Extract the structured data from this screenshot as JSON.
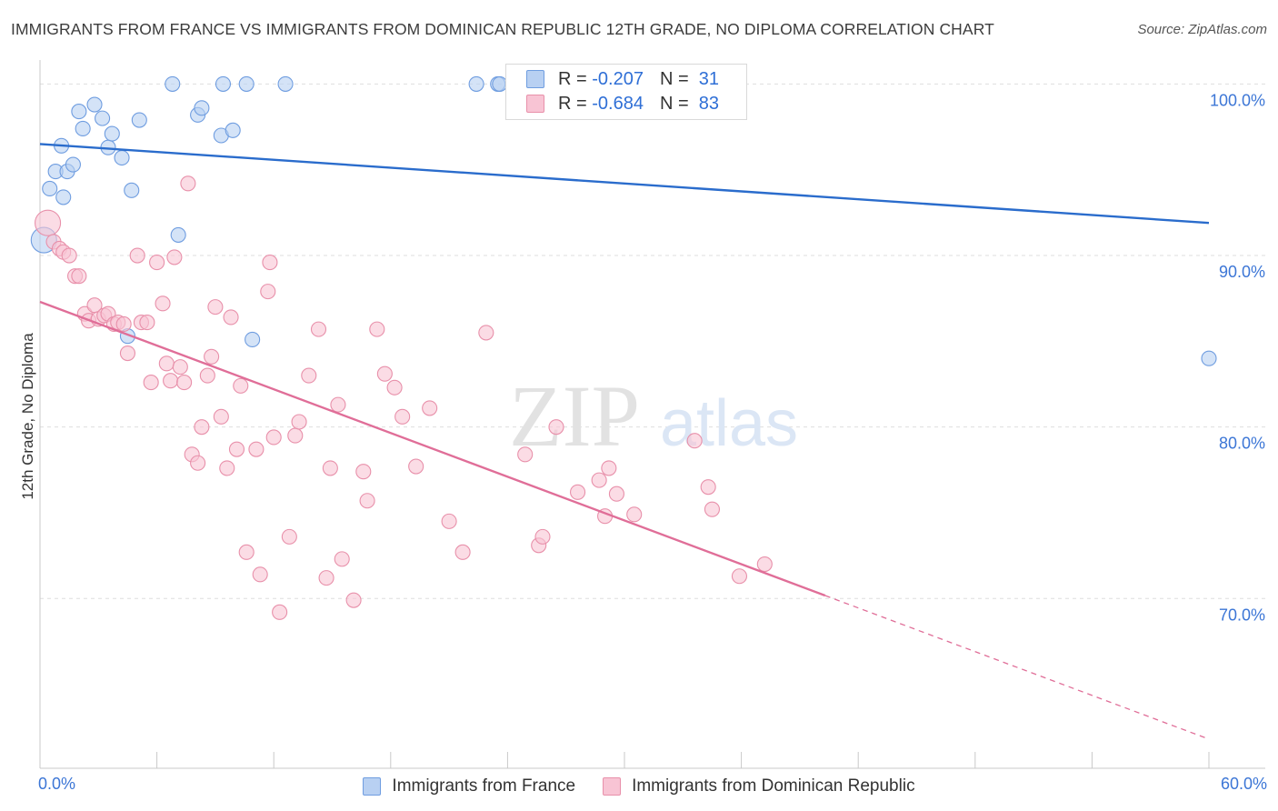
{
  "title": "IMMIGRANTS FROM FRANCE VS IMMIGRANTS FROM DOMINICAN REPUBLIC 12TH GRADE, NO DIPLOMA CORRELATION CHART",
  "source": "Source: ZipAtlas.com",
  "watermark": {
    "zip": "ZIP",
    "atlas": "atlas"
  },
  "legend": {
    "r_label": "R =",
    "n_label": "N =",
    "rows": [
      {
        "r": "-0.207",
        "n": "31",
        "fill": "#b8d0f2",
        "stroke": "#6f9de0"
      },
      {
        "r": "-0.684",
        "n": "83",
        "fill": "#f8c4d4",
        "stroke": "#e890aa"
      }
    ]
  },
  "x_axis": {
    "min_label": "0.0%",
    "max_label": "60.0%"
  },
  "chart_data": {
    "type": "scatter",
    "title": "IMMIGRANTS FROM FRANCE VS IMMIGRANTS FROM DOMINICAN REPUBLIC 12TH GRADE, NO DIPLOMA CORRELATION CHART",
    "xlabel": "",
    "ylabel": "12th Grade, No Diploma",
    "xlim": [
      0,
      60
    ],
    "ylim": [
      60.1,
      101.4
    ],
    "y_ticks": [
      {
        "value": 100,
        "label": "100.0%"
      },
      {
        "value": 90,
        "label": "90.0%"
      },
      {
        "value": 80,
        "label": "80.0%"
      },
      {
        "value": 70,
        "label": "70.0%"
      }
    ],
    "x_tick_values": [
      0,
      6,
      12,
      18,
      24,
      30,
      36,
      42,
      48,
      54,
      60
    ],
    "grid": "horizontal-dashed",
    "legend_position": "top-center",
    "series": [
      {
        "name": "Immigrants from France",
        "color": "#6f9de0",
        "fill": "#b8d0f2",
        "line_color": "#2a6ccc",
        "trend": {
          "x0": 0,
          "y0": 96.5,
          "x1": 60,
          "y1": 91.9,
          "solid_to": 60
        },
        "points": [
          [
            0.2,
            90.9
          ],
          [
            0.5,
            93.9
          ],
          [
            0.8,
            94.9
          ],
          [
            1.1,
            96.4
          ],
          [
            1.4,
            94.9
          ],
          [
            1.7,
            95.3
          ],
          [
            2.0,
            98.4
          ],
          [
            2.2,
            97.4
          ],
          [
            2.8,
            98.8
          ],
          [
            3.2,
            98.0
          ],
          [
            3.5,
            96.3
          ],
          [
            3.7,
            97.1
          ],
          [
            4.2,
            95.7
          ],
          [
            4.5,
            85.3
          ],
          [
            4.7,
            93.8
          ],
          [
            5.1,
            97.9
          ],
          [
            6.8,
            100.0
          ],
          [
            7.1,
            91.2
          ],
          [
            8.1,
            98.2
          ],
          [
            8.3,
            98.6
          ],
          [
            9.3,
            97.0
          ],
          [
            9.4,
            100.0
          ],
          [
            9.9,
            97.3
          ],
          [
            10.6,
            100.0
          ],
          [
            10.9,
            85.1
          ],
          [
            12.6,
            100.0
          ],
          [
            22.4,
            100.0
          ],
          [
            23.5,
            100.0
          ],
          [
            60.0,
            84.0
          ],
          [
            1.2,
            93.4
          ],
          [
            23.6,
            100.0
          ]
        ]
      },
      {
        "name": "Immigrants from Dominican Republic",
        "color": "#e890aa",
        "fill": "#f8c4d4",
        "line_color": "#e06e98",
        "trend": {
          "x0": 0,
          "y0": 87.3,
          "x1": 60,
          "y1": 61.8,
          "solid_to": 40.3
        },
        "points": [
          [
            0.4,
            91.9
          ],
          [
            0.7,
            90.8
          ],
          [
            1.0,
            90.4
          ],
          [
            1.2,
            90.2
          ],
          [
            1.5,
            90.0
          ],
          [
            1.8,
            88.8
          ],
          [
            2.0,
            88.8
          ],
          [
            2.3,
            86.6
          ],
          [
            2.5,
            86.2
          ],
          [
            2.8,
            87.1
          ],
          [
            3.0,
            86.3
          ],
          [
            3.3,
            86.5
          ],
          [
            3.5,
            86.6
          ],
          [
            3.8,
            86.0
          ],
          [
            4.0,
            86.1
          ],
          [
            4.3,
            86.0
          ],
          [
            4.5,
            84.3
          ],
          [
            5.0,
            90.0
          ],
          [
            5.2,
            86.1
          ],
          [
            5.5,
            86.1
          ],
          [
            5.7,
            82.6
          ],
          [
            6.0,
            89.6
          ],
          [
            6.3,
            87.2
          ],
          [
            6.5,
            83.7
          ],
          [
            6.7,
            82.7
          ],
          [
            6.9,
            89.9
          ],
          [
            7.2,
            83.5
          ],
          [
            7.4,
            82.6
          ],
          [
            7.6,
            94.2
          ],
          [
            7.8,
            78.4
          ],
          [
            8.1,
            77.9
          ],
          [
            8.3,
            80.0
          ],
          [
            8.6,
            83.0
          ],
          [
            8.8,
            84.1
          ],
          [
            9.0,
            87.0
          ],
          [
            9.3,
            80.6
          ],
          [
            9.6,
            77.6
          ],
          [
            9.8,
            86.4
          ],
          [
            10.1,
            78.7
          ],
          [
            10.3,
            82.4
          ],
          [
            10.6,
            72.7
          ],
          [
            11.1,
            78.7
          ],
          [
            11.3,
            71.4
          ],
          [
            11.7,
            87.9
          ],
          [
            11.8,
            89.6
          ],
          [
            12.0,
            79.4
          ],
          [
            12.3,
            69.2
          ],
          [
            12.8,
            73.6
          ],
          [
            13.1,
            79.5
          ],
          [
            13.3,
            80.3
          ],
          [
            13.8,
            83.0
          ],
          [
            14.3,
            85.7
          ],
          [
            14.7,
            71.2
          ],
          [
            14.9,
            77.6
          ],
          [
            15.3,
            81.3
          ],
          [
            15.5,
            72.3
          ],
          [
            16.1,
            69.9
          ],
          [
            16.6,
            77.4
          ],
          [
            16.8,
            75.7
          ],
          [
            17.3,
            85.7
          ],
          [
            17.7,
            83.1
          ],
          [
            18.2,
            82.3
          ],
          [
            18.6,
            80.6
          ],
          [
            19.3,
            77.7
          ],
          [
            20.0,
            81.1
          ],
          [
            21.0,
            74.5
          ],
          [
            21.7,
            72.7
          ],
          [
            22.9,
            85.5
          ],
          [
            24.9,
            78.4
          ],
          [
            25.6,
            73.1
          ],
          [
            25.8,
            73.6
          ],
          [
            26.5,
            80.0
          ],
          [
            27.6,
            76.2
          ],
          [
            28.7,
            76.9
          ],
          [
            29.0,
            74.8
          ],
          [
            29.2,
            77.6
          ],
          [
            29.6,
            76.1
          ],
          [
            30.5,
            74.9
          ],
          [
            33.6,
            79.2
          ],
          [
            34.3,
            76.5
          ],
          [
            34.5,
            75.2
          ],
          [
            35.9,
            71.3
          ],
          [
            37.2,
            72.0
          ]
        ]
      }
    ]
  }
}
